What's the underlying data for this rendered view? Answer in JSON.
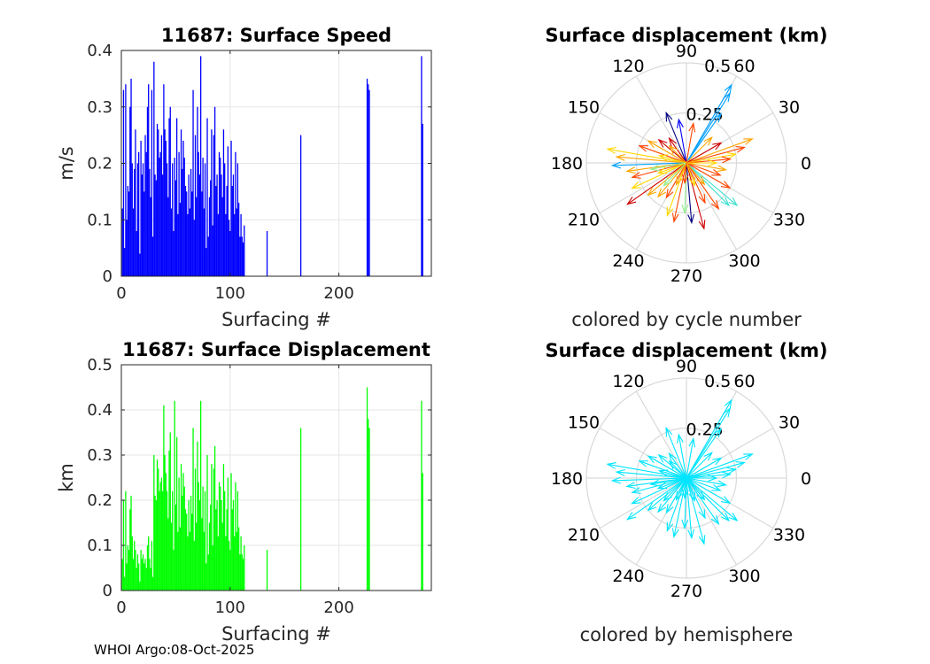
{
  "footer": "WHOI Argo:08-Oct-2025",
  "chart_data": [
    {
      "type": "bar",
      "title": "11687: Surface Speed",
      "xlabel": "Surfacing #",
      "ylabel": "m/s",
      "xlim": [
        0,
        285
      ],
      "ylim": [
        0,
        0.4
      ],
      "xticks": [
        "0",
        "100",
        "200"
      ],
      "yticks": [
        "0",
        "0.1",
        "0.2",
        "0.3",
        "0.4"
      ],
      "color": "#0000ff",
      "grid": true,
      "series": [
        {
          "name": "speed",
          "x": [
            1,
            2,
            3,
            4,
            5,
            6,
            7,
            8,
            9,
            10,
            11,
            12,
            13,
            14,
            15,
            16,
            17,
            18,
            19,
            20,
            21,
            22,
            23,
            24,
            25,
            26,
            27,
            28,
            29,
            30,
            31,
            32,
            33,
            34,
            35,
            36,
            37,
            38,
            39,
            40,
            41,
            42,
            43,
            44,
            45,
            46,
            47,
            48,
            49,
            50,
            51,
            52,
            53,
            54,
            55,
            56,
            57,
            58,
            59,
            60,
            61,
            62,
            63,
            64,
            65,
            66,
            67,
            68,
            69,
            70,
            71,
            72,
            73,
            74,
            75,
            76,
            77,
            78,
            79,
            80,
            81,
            82,
            83,
            84,
            85,
            86,
            87,
            88,
            89,
            90,
            91,
            92,
            93,
            94,
            95,
            96,
            97,
            98,
            99,
            100,
            101,
            102,
            103,
            104,
            105,
            106,
            107,
            108,
            109,
            110,
            111,
            112,
            113,
            134,
            165,
            226,
            227,
            228,
            276,
            277
          ],
          "values": [
            0.12,
            0.33,
            0.05,
            0.34,
            0.1,
            0.16,
            0.15,
            0.3,
            0.35,
            0.2,
            0.12,
            0.19,
            0.26,
            0.08,
            0.2,
            0.22,
            0.04,
            0.24,
            0.18,
            0.2,
            0.15,
            0.25,
            0.22,
            0.3,
            0.34,
            0.19,
            0.14,
            0.33,
            0.07,
            0.38,
            0.18,
            0.17,
            0.27,
            0.26,
            0.21,
            0.22,
            0.25,
            0.18,
            0.34,
            0.26,
            0.24,
            0.2,
            0.14,
            0.28,
            0.3,
            0.12,
            0.2,
            0.08,
            0.21,
            0.17,
            0.28,
            0.11,
            0.22,
            0.13,
            0.26,
            0.19,
            0.24,
            0.21,
            0.16,
            0.15,
            0.11,
            0.18,
            0.12,
            0.19,
            0.15,
            0.33,
            0.1,
            0.25,
            0.14,
            0.3,
            0.22,
            0.18,
            0.39,
            0.15,
            0.21,
            0.12,
            0.2,
            0.05,
            0.28,
            0.07,
            0.14,
            0.17,
            0.26,
            0.09,
            0.25,
            0.3,
            0.16,
            0.18,
            0.11,
            0.22,
            0.21,
            0.18,
            0.14,
            0.26,
            0.2,
            0.11,
            0.16,
            0.23,
            0.1,
            0.08,
            0.24,
            0.16,
            0.18,
            0.11,
            0.22,
            0.12,
            0.2,
            0.13,
            0.07,
            0.11,
            0.07,
            0.06,
            0.09,
            0.08,
            0.25,
            0.35,
            0.34,
            0.33,
            0.39,
            0.27
          ]
        }
      ]
    },
    {
      "type": "polar-quiver",
      "title": "Surface displacement (km)",
      "subtitle": "colored by cycle number",
      "rlim": [
        0,
        0.5
      ],
      "rticks": [
        "0.25",
        "0.5"
      ],
      "angle_ticks": [
        "0",
        "30",
        "60",
        "90",
        "120",
        "150",
        "180",
        "210",
        "240",
        "270",
        "300",
        "330"
      ],
      "color_scale": [
        "#000080",
        "#0000ff",
        "#00a0ff",
        "#40e0d0",
        "#90ee90",
        "#ffd700",
        "#ffa500",
        "#ff4500",
        "#cc0000"
      ],
      "vectors": [
        {
          "angle": 60,
          "r": 0.45,
          "cycle": 0.25
        },
        {
          "angle": 58,
          "r": 0.41,
          "cycle": 0.3
        },
        {
          "angle": 55,
          "r": 0.3,
          "cycle": 0.2
        },
        {
          "angle": 112,
          "r": 0.27,
          "cycle": 0.05
        },
        {
          "angle": 100,
          "r": 0.22,
          "cycle": 0.15
        },
        {
          "angle": 80,
          "r": 0.2,
          "cycle": 0.9
        },
        {
          "angle": 20,
          "r": 0.35,
          "cycle": 0.75
        },
        {
          "angle": 15,
          "r": 0.3,
          "cycle": 0.85
        },
        {
          "angle": 10,
          "r": 0.25,
          "cycle": 0.65
        },
        {
          "angle": 5,
          "r": 0.22,
          "cycle": 0.9
        },
        {
          "angle": 170,
          "r": 0.4,
          "cycle": 0.6
        },
        {
          "angle": 175,
          "r": 0.35,
          "cycle": 0.75
        },
        {
          "angle": 182,
          "r": 0.37,
          "cycle": 0.2
        },
        {
          "angle": 188,
          "r": 0.3,
          "cycle": 0.7
        },
        {
          "angle": 195,
          "r": 0.28,
          "cycle": 0.85
        },
        {
          "angle": 160,
          "r": 0.25,
          "cycle": 0.9
        },
        {
          "angle": 150,
          "r": 0.22,
          "cycle": 0.8
        },
        {
          "angle": 140,
          "r": 0.18,
          "cycle": 0.95
        },
        {
          "angle": 205,
          "r": 0.3,
          "cycle": 0.65
        },
        {
          "angle": 215,
          "r": 0.36,
          "cycle": 0.95
        },
        {
          "angle": 220,
          "r": 0.25,
          "cycle": 0.8
        },
        {
          "angle": 230,
          "r": 0.22,
          "cycle": 0.7
        },
        {
          "angle": 240,
          "r": 0.2,
          "cycle": 0.9
        },
        {
          "angle": 250,
          "r": 0.28,
          "cycle": 0.65
        },
        {
          "angle": 258,
          "r": 0.3,
          "cycle": 0.85
        },
        {
          "angle": 268,
          "r": 0.25,
          "cycle": 0.55
        },
        {
          "angle": 275,
          "r": 0.3,
          "cycle": 0.05
        },
        {
          "angle": 285,
          "r": 0.34,
          "cycle": 0.95
        },
        {
          "angle": 295,
          "r": 0.22,
          "cycle": 0.9
        },
        {
          "angle": 305,
          "r": 0.28,
          "cycle": 0.9
        },
        {
          "angle": 315,
          "r": 0.3,
          "cycle": 0.35
        },
        {
          "angle": 320,
          "r": 0.33,
          "cycle": 0.4
        },
        {
          "angle": 330,
          "r": 0.25,
          "cycle": 0.85
        },
        {
          "angle": 340,
          "r": 0.18,
          "cycle": 0.9
        },
        {
          "angle": 350,
          "r": 0.2,
          "cycle": 0.75
        },
        {
          "angle": 0,
          "r": 0.15,
          "cycle": 0.6
        },
        {
          "angle": 30,
          "r": 0.2,
          "cycle": 0.95
        },
        {
          "angle": 45,
          "r": 0.18,
          "cycle": 0.8
        },
        {
          "angle": 125,
          "r": 0.15,
          "cycle": 0.95
        },
        {
          "angle": 135,
          "r": 0.12,
          "cycle": 0.7
        },
        {
          "angle": 200,
          "r": 0.15,
          "cycle": 0.6
        },
        {
          "angle": 245,
          "r": 0.12,
          "cycle": 0.8
        },
        {
          "angle": 290,
          "r": 0.12,
          "cycle": 0.65
        },
        {
          "angle": 190,
          "r": 0.18,
          "cycle": 0.55
        },
        {
          "angle": 165,
          "r": 0.14,
          "cycle": 0.65
        },
        {
          "angle": 225,
          "r": 0.16,
          "cycle": 0.55
        },
        {
          "angle": 310,
          "r": 0.14,
          "cycle": 0.7
        },
        {
          "angle": 265,
          "r": 0.1,
          "cycle": 0.9
        }
      ]
    },
    {
      "type": "bar",
      "title": "11687: Surface Displacement",
      "xlabel": "Surfacing #",
      "ylabel": "km",
      "xlim": [
        0,
        285
      ],
      "ylim": [
        0,
        0.5
      ],
      "xticks": [
        "0",
        "100",
        "200"
      ],
      "yticks": [
        "0",
        "0.1",
        "0.2",
        "0.3",
        "0.4",
        "0.5"
      ],
      "color": "#00ff00",
      "grid": true,
      "series": [
        {
          "name": "displacement",
          "x": [
            1,
            2,
            3,
            4,
            5,
            6,
            7,
            8,
            9,
            10,
            11,
            12,
            13,
            14,
            15,
            16,
            17,
            18,
            19,
            20,
            21,
            22,
            23,
            24,
            25,
            26,
            27,
            28,
            29,
            30,
            31,
            32,
            33,
            34,
            35,
            36,
            37,
            38,
            39,
            40,
            41,
            42,
            43,
            44,
            45,
            46,
            47,
            48,
            49,
            50,
            51,
            52,
            53,
            54,
            55,
            56,
            57,
            58,
            59,
            60,
            61,
            62,
            63,
            64,
            65,
            66,
            67,
            68,
            69,
            70,
            71,
            72,
            73,
            74,
            75,
            76,
            77,
            78,
            79,
            80,
            81,
            82,
            83,
            84,
            85,
            86,
            87,
            88,
            89,
            90,
            91,
            92,
            93,
            94,
            95,
            96,
            97,
            98,
            99,
            100,
            101,
            102,
            103,
            104,
            105,
            106,
            107,
            108,
            109,
            110,
            111,
            112,
            113,
            134,
            165,
            226,
            227,
            228,
            276,
            277
          ],
          "values": [
            0.07,
            0.2,
            0.03,
            0.22,
            0.06,
            0.1,
            0.09,
            0.18,
            0.21,
            0.12,
            0.07,
            0.11,
            0.09,
            0.05,
            0.08,
            0.06,
            0.02,
            0.09,
            0.07,
            0.08,
            0.06,
            0.07,
            0.05,
            0.1,
            0.12,
            0.07,
            0.05,
            0.11,
            0.03,
            0.3,
            0.21,
            0.2,
            0.29,
            0.27,
            0.22,
            0.24,
            0.25,
            0.22,
            0.41,
            0.3,
            0.26,
            0.22,
            0.16,
            0.31,
            0.35,
            0.15,
            0.22,
            0.09,
            0.42,
            0.19,
            0.34,
            0.13,
            0.25,
            0.14,
            0.28,
            0.21,
            0.26,
            0.23,
            0.18,
            0.17,
            0.12,
            0.2,
            0.13,
            0.21,
            0.17,
            0.36,
            0.11,
            0.27,
            0.15,
            0.33,
            0.24,
            0.2,
            0.42,
            0.16,
            0.23,
            0.13,
            0.22,
            0.06,
            0.3,
            0.08,
            0.15,
            0.19,
            0.28,
            0.1,
            0.27,
            0.32,
            0.18,
            0.2,
            0.12,
            0.24,
            0.23,
            0.2,
            0.15,
            0.28,
            0.22,
            0.12,
            0.18,
            0.25,
            0.11,
            0.09,
            0.26,
            0.18,
            0.2,
            0.12,
            0.24,
            0.13,
            0.22,
            0.14,
            0.08,
            0.12,
            0.08,
            0.07,
            0.1,
            0.09,
            0.36,
            0.45,
            0.38,
            0.36,
            0.42,
            0.26
          ]
        }
      ]
    },
    {
      "type": "polar-quiver",
      "title": "Surface displacement (km)",
      "subtitle": "colored by hemisphere",
      "rlim": [
        0,
        0.5
      ],
      "rticks": [
        "0.25",
        "0.5"
      ],
      "angle_ticks": [
        "0",
        "30",
        "60",
        "90",
        "120",
        "150",
        "180",
        "210",
        "240",
        "270",
        "300",
        "330"
      ],
      "color": "#00e5ff",
      "vectors": [
        {
          "angle": 60,
          "r": 0.45
        },
        {
          "angle": 58,
          "r": 0.41
        },
        {
          "angle": 55,
          "r": 0.3
        },
        {
          "angle": 112,
          "r": 0.27
        },
        {
          "angle": 100,
          "r": 0.22
        },
        {
          "angle": 80,
          "r": 0.2
        },
        {
          "angle": 20,
          "r": 0.35
        },
        {
          "angle": 15,
          "r": 0.3
        },
        {
          "angle": 10,
          "r": 0.25
        },
        {
          "angle": 5,
          "r": 0.22
        },
        {
          "angle": 170,
          "r": 0.4
        },
        {
          "angle": 175,
          "r": 0.35
        },
        {
          "angle": 182,
          "r": 0.37
        },
        {
          "angle": 188,
          "r": 0.3
        },
        {
          "angle": 195,
          "r": 0.28
        },
        {
          "angle": 160,
          "r": 0.25
        },
        {
          "angle": 150,
          "r": 0.22
        },
        {
          "angle": 140,
          "r": 0.18
        },
        {
          "angle": 205,
          "r": 0.3
        },
        {
          "angle": 215,
          "r": 0.36
        },
        {
          "angle": 220,
          "r": 0.25
        },
        {
          "angle": 230,
          "r": 0.22
        },
        {
          "angle": 240,
          "r": 0.2
        },
        {
          "angle": 250,
          "r": 0.28
        },
        {
          "angle": 258,
          "r": 0.3
        },
        {
          "angle": 268,
          "r": 0.25
        },
        {
          "angle": 275,
          "r": 0.3
        },
        {
          "angle": 285,
          "r": 0.34
        },
        {
          "angle": 295,
          "r": 0.22
        },
        {
          "angle": 305,
          "r": 0.28
        },
        {
          "angle": 315,
          "r": 0.3
        },
        {
          "angle": 320,
          "r": 0.33
        },
        {
          "angle": 330,
          "r": 0.25
        },
        {
          "angle": 340,
          "r": 0.18
        },
        {
          "angle": 350,
          "r": 0.2
        },
        {
          "angle": 0,
          "r": 0.15
        },
        {
          "angle": 30,
          "r": 0.2
        },
        {
          "angle": 45,
          "r": 0.18
        },
        {
          "angle": 125,
          "r": 0.15
        },
        {
          "angle": 135,
          "r": 0.12
        },
        {
          "angle": 200,
          "r": 0.15
        },
        {
          "angle": 245,
          "r": 0.12
        },
        {
          "angle": 290,
          "r": 0.12
        },
        {
          "angle": 190,
          "r": 0.18
        },
        {
          "angle": 165,
          "r": 0.14
        },
        {
          "angle": 225,
          "r": 0.16
        },
        {
          "angle": 310,
          "r": 0.14
        },
        {
          "angle": 265,
          "r": 0.1
        }
      ]
    }
  ]
}
